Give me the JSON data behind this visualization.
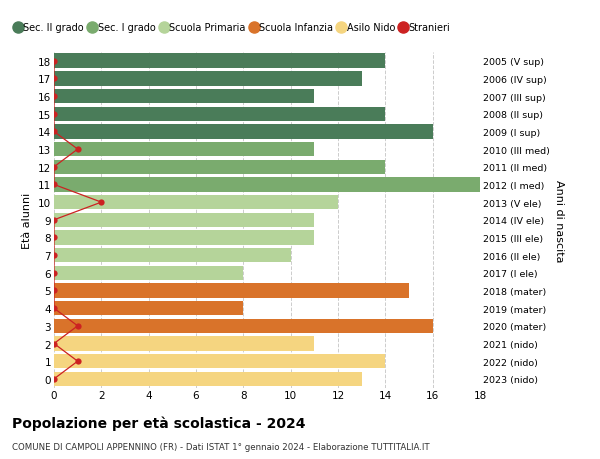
{
  "ages": [
    18,
    17,
    16,
    15,
    14,
    13,
    12,
    11,
    10,
    9,
    8,
    7,
    6,
    5,
    4,
    3,
    2,
    1,
    0
  ],
  "labels_right": [
    "2005 (V sup)",
    "2006 (IV sup)",
    "2007 (III sup)",
    "2008 (II sup)",
    "2009 (I sup)",
    "2010 (III med)",
    "2011 (II med)",
    "2012 (I med)",
    "2013 (V ele)",
    "2014 (IV ele)",
    "2015 (III ele)",
    "2016 (II ele)",
    "2017 (I ele)",
    "2018 (mater)",
    "2019 (mater)",
    "2020 (mater)",
    "2021 (nido)",
    "2022 (nido)",
    "2023 (nido)"
  ],
  "bar_values": [
    14,
    13,
    11,
    14,
    16,
    11,
    14,
    18,
    12,
    11,
    11,
    10,
    8,
    15,
    8,
    16,
    11,
    14,
    13
  ],
  "bar_colors": [
    "#4a7c59",
    "#4a7c59",
    "#4a7c59",
    "#4a7c59",
    "#4a7c59",
    "#7aab6e",
    "#7aab6e",
    "#7aab6e",
    "#b5d49a",
    "#b5d49a",
    "#b5d49a",
    "#b5d49a",
    "#b5d49a",
    "#d9732a",
    "#d9732a",
    "#d9732a",
    "#f5d580",
    "#f5d580",
    "#f5d580"
  ],
  "stranieri_values": [
    0,
    0,
    0,
    0,
    0,
    1,
    0,
    0,
    2,
    0,
    0,
    0,
    0,
    0,
    0,
    1,
    0,
    1,
    0
  ],
  "legend_labels": [
    "Sec. II grado",
    "Sec. I grado",
    "Scuola Primaria",
    "Scuola Infanzia",
    "Asilo Nido",
    "Stranieri"
  ],
  "legend_colors": [
    "#4a7c59",
    "#7aab6e",
    "#b5d49a",
    "#d9732a",
    "#f5d580",
    "#cc2222"
  ],
  "title": "Popolazione per età scolastica - 2024",
  "subtitle": "COMUNE DI CAMPOLI APPENNINO (FR) - Dati ISTAT 1° gennaio 2024 - Elaborazione TUTTITALIA.IT",
  "ylabel_left": "Età alunni",
  "ylabel_right": "Anni di nascita",
  "xlim": [
    0,
    18
  ],
  "ylim": [
    -0.5,
    18.5
  ],
  "bg_color": "#ffffff",
  "grid_color": "#cccccc"
}
